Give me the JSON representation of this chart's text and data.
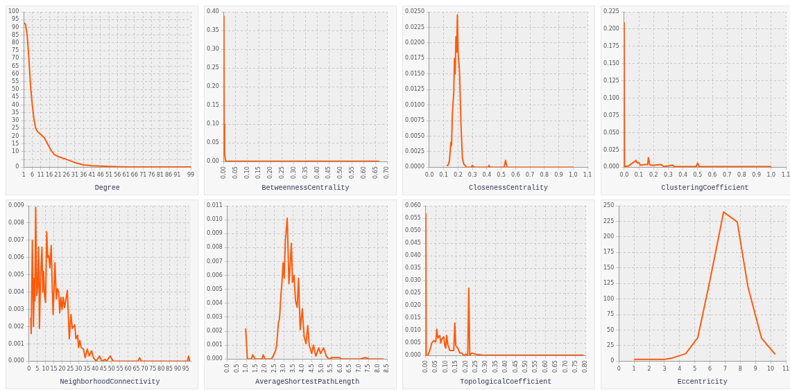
{
  "chart_data": [
    {
      "type": "line",
      "xlabel": "Degree",
      "color": "#ff5a0a",
      "grid": true,
      "marker": "none",
      "x": [
        1,
        2,
        3,
        4,
        5,
        6,
        7,
        8,
        9,
        11,
        13,
        15,
        17,
        19,
        21,
        26,
        31,
        36,
        41,
        51,
        61,
        99
      ],
      "values": [
        93,
        92,
        85,
        70,
        52,
        40,
        31,
        25,
        23,
        21,
        19,
        15,
        11,
        8,
        7,
        5,
        3,
        1.5,
        1,
        0.5,
        0.2,
        0.2
      ],
      "xlim": [
        1,
        99
      ],
      "xticks": [
        1,
        6,
        11,
        16,
        21,
        26,
        31,
        36,
        41,
        46,
        51,
        56,
        61,
        66,
        71,
        76,
        81,
        86,
        91,
        99
      ],
      "ylim": [
        0,
        100
      ],
      "yticks": [
        0,
        {
          "value": 5,
          "label": null
        },
        10,
        15,
        20,
        25,
        30,
        35,
        40,
        45,
        50,
        55,
        60,
        65,
        70,
        75,
        80,
        85,
        90,
        95,
        100
      ]
    },
    {
      "type": "line",
      "xlabel": "BetweennessCentrality",
      "color": "#ff5a0a",
      "grid": true,
      "marker": "none",
      "x": [
        0,
        0.001,
        0.003,
        0.007,
        0.01,
        0.665
      ],
      "values": [
        0.39,
        0.1,
        0.02,
        0.003,
        0.001,
        0.001
      ],
      "xlim": [
        0,
        0.7
      ],
      "xticks": [
        {
          "value": 0,
          "label": "0.00"
        },
        0.05,
        {
          "value": 0.1,
          "label": "0.10"
        },
        0.15,
        {
          "value": 0.2,
          "label": "0.20"
        },
        0.25,
        {
          "value": 0.3,
          "label": "0.30"
        },
        0.35,
        {
          "value": 0.4,
          "label": "0.40"
        },
        0.45,
        {
          "value": 0.5,
          "label": "0.50"
        },
        0.55,
        {
          "value": 0.6,
          "label": "0.60"
        },
        0.65,
        {
          "value": 0.7,
          "label": "0.70"
        }
      ],
      "ylim": [
        0,
        0.4
      ],
      "yticks": [
        {
          "value": 0,
          "label": "0.00"
        },
        0.05,
        {
          "value": 0.1,
          "label": "0.10"
        },
        0.15,
        {
          "value": 0.2,
          "label": "0.20"
        },
        0.25,
        {
          "value": 0.3,
          "label": "0.30"
        },
        0.35,
        {
          "value": 0.4,
          "label": "0.40"
        }
      ]
    },
    {
      "type": "line",
      "xlabel": "ClosenessCentrality",
      "color": "#ff5a0a",
      "grid": true,
      "marker": "none",
      "x": [
        0.12,
        0.13,
        0.14,
        0.15,
        0.155,
        0.16,
        0.17,
        0.175,
        0.18,
        0.185,
        0.19,
        0.195,
        0.2,
        0.21,
        0.22,
        0.23,
        0.24,
        0.26,
        0.29,
        0.3,
        0.31,
        0.41,
        0.415,
        0.42,
        0.52,
        0.53,
        0.54,
        1.0
      ],
      "values": [
        0.0003,
        0.0003,
        0.001,
        0.004,
        0.0035,
        0.0085,
        0.012,
        0.0175,
        0.015,
        0.021,
        0.0185,
        0.0245,
        0.0185,
        0.0155,
        0.007,
        0.0015,
        0.0005,
        0,
        0,
        0.0003,
        0,
        0,
        0.0003,
        0,
        0,
        0.0011,
        0,
        0
      ],
      "xlim": [
        0,
        1.1
      ],
      "xticks": [
        {
          "value": 0,
          "label": "0.0"
        },
        0.1,
        0.2,
        0.3,
        0.4,
        0.5,
        0.6,
        0.7,
        0.8,
        0.9,
        {
          "value": 1,
          "label": "1.0"
        },
        1.1
      ],
      "ylim": [
        0,
        0.025
      ],
      "yticks": [
        {
          "value": 0,
          "label": "0.0000"
        },
        {
          "value": 0.0025,
          "label": "0.0025"
        },
        {
          "value": 0.005,
          "label": "0.0050"
        },
        {
          "value": 0.0075,
          "label": "0.0075"
        },
        {
          "value": 0.01,
          "label": "0.0100"
        },
        {
          "value": 0.0125,
          "label": "0.0125"
        },
        {
          "value": 0.015,
          "label": "0.0150"
        },
        {
          "value": 0.0175,
          "label": "0.0175"
        },
        {
          "value": 0.02,
          "label": "0.0200"
        },
        {
          "value": 0.0225,
          "label": "0.0225"
        },
        {
          "value": 0.025,
          "label": "0.0250"
        }
      ]
    },
    {
      "type": "line",
      "xlabel": "ClusteringCoefficient",
      "color": "#ff5a0a",
      "grid": true,
      "marker": "none",
      "x": [
        0,
        0.003,
        0.03,
        0.05,
        0.07,
        0.08,
        0.09,
        0.1,
        0.11,
        0.14,
        0.16,
        0.165,
        0.175,
        0.2,
        0.25,
        0.27,
        0.33,
        0.34,
        0.49,
        0.5,
        0.51,
        1.0
      ],
      "values": [
        0.21,
        0.001,
        0.002,
        0.005,
        0.008,
        0.01,
        0.006,
        0.007,
        0.003,
        0.004,
        0.004,
        0.014,
        0.003,
        0.003,
        0.004,
        0.001,
        0.003,
        0.001,
        0.001,
        0.006,
        0.001,
        0.001
      ],
      "xlim": [
        0,
        1.1
      ],
      "xticks": [
        {
          "value": 0,
          "label": "0.0"
        },
        0.1,
        0.2,
        0.3,
        0.4,
        0.5,
        0.6,
        0.7,
        0.8,
        0.9,
        {
          "value": 1,
          "label": "1.0"
        },
        1.1
      ],
      "ylim": [
        0,
        0.225
      ],
      "yticks": [
        {
          "value": 0,
          "label": "0.000"
        },
        0.025,
        {
          "value": 0.05,
          "label": "0.050"
        },
        0.075,
        {
          "value": 0.1,
          "label": "0.100"
        },
        0.125,
        {
          "value": 0.15,
          "label": "0.150"
        },
        0.175,
        {
          "value": 0.2,
          "label": "0.200"
        },
        0.225
      ]
    },
    {
      "type": "line",
      "xlabel": "NeighborhoodConnectivity",
      "color": "#ff5a0a",
      "grid": true,
      "marker": "none",
      "x": [
        1,
        1.3,
        2,
        2.7,
        3.2,
        3.5,
        4,
        4.6,
        5.2,
        5.8,
        6.3,
        7,
        7.8,
        8.3,
        8.8,
        9.4,
        10,
        10.7,
        11.3,
        12,
        12.6,
        13.4,
        14,
        14.6,
        15.7,
        16.5,
        17.2,
        18,
        18.6,
        19.3,
        20,
        20.7,
        21.5,
        23.2,
        24.4,
        25.4,
        26.2,
        27.7,
        28.4,
        29.4,
        30,
        30.8,
        31.5,
        33,
        34,
        35.3,
        36.5,
        37.9,
        39,
        40.7,
        42.7,
        44,
        46,
        47,
        49.2,
        51,
        66,
        67,
        68,
        96,
        96.7,
        97.3
      ],
      "values": [
        0.0025,
        0.0016,
        0.007,
        0.002,
        0.0048,
        0.0035,
        0.0089,
        0.0038,
        0.0043,
        0.0066,
        0.0019,
        0.005,
        0.0066,
        0.004,
        0.0052,
        0.0038,
        0.0034,
        0.0075,
        0.006,
        0.0061,
        0.0054,
        0.0067,
        0.0045,
        0.0027,
        0.0057,
        0.0036,
        0.0042,
        0.004,
        0.0028,
        0.0037,
        0.003,
        0.0037,
        0.0031,
        0.0041,
        0.0013,
        0.0027,
        0.0019,
        0.0021,
        0.0013,
        0.0015,
        0.0008,
        0.0012,
        0.0008,
        0.0007,
        0.0002,
        0.0007,
        0.0003,
        0.0006,
        0.0002,
        0,
        0.0003,
        0,
        0.0001,
        0,
        0.0003,
        0,
        0,
        0.0002,
        0,
        0,
        0.0003,
        0
      ],
      "xlim": [
        0,
        98
      ],
      "xticks": [
        0,
        5,
        10,
        15,
        20,
        25,
        30,
        35,
        40,
        45,
        50,
        55,
        60,
        65,
        70,
        75,
        80,
        85,
        90,
        95
      ],
      "ylim": [
        0,
        0.009
      ],
      "yticks": [
        {
          "value": 0,
          "label": "0.000"
        },
        0.001,
        0.002,
        0.003,
        0.004,
        0.005,
        0.006,
        0.007,
        0.008,
        0.009
      ]
    },
    {
      "type": "line",
      "xlabel": "AverageShortestPathLength",
      "color": "#ff5a0a",
      "grid": true,
      "marker": "none",
      "x": [
        0.97,
        1.06,
        1.28,
        1.34,
        1.47,
        1.84,
        1.9,
        1.99,
        2.34,
        2.46,
        2.56,
        2.62,
        2.71,
        2.77,
        2.84,
        2.9,
        2.96,
        3.02,
        3.08,
        3.18,
        3.27,
        3.33,
        3.4,
        3.46,
        3.54,
        3.62,
        3.71,
        3.78,
        3.87,
        3.98,
        4.08,
        4.18,
        4.27,
        4.35,
        4.48,
        4.58,
        4.7,
        4.85,
        4.95,
        5.11,
        5.26,
        5.39,
        5.57,
        5.95,
        6.07,
        7.06,
        7.31,
        7.56,
        8.3
      ],
      "values": [
        0.0022,
        0,
        0,
        0.0003,
        0,
        0,
        0.0003,
        0,
        0,
        0.0003,
        0.0006,
        0.001,
        0.0026,
        0.0029,
        0.0045,
        0.0055,
        0.0069,
        0.0058,
        0.0085,
        0.0101,
        0.0054,
        0.0066,
        0.0083,
        0.0055,
        0.006,
        0.0042,
        0.0037,
        0.0058,
        0.0021,
        0.0036,
        0.0016,
        0.0011,
        0.0024,
        0.001,
        0.0004,
        0.001,
        0.0002,
        0.0008,
        0.0004,
        0.0008,
        0.0002,
        0,
        0.0001,
        0.0001,
        0,
        0,
        0.0001,
        0,
        0
      ],
      "xlim": [
        0,
        8.5
      ],
      "xticks": [
        {
          "value": 0,
          "label": "0.0"
        },
        0.5,
        {
          "value": 1,
          "label": "1.0"
        },
        1.5,
        {
          "value": 2,
          "label": "2.0"
        },
        2.5,
        {
          "value": 3,
          "label": "3.0"
        },
        3.5,
        {
          "value": 4,
          "label": "4.0"
        },
        4.5,
        {
          "value": 5,
          "label": "5.0"
        },
        5.5,
        {
          "value": 6,
          "label": "6.0"
        },
        6.5,
        {
          "value": 7,
          "label": "7.0"
        },
        7.5,
        {
          "value": 8,
          "label": "8.0"
        },
        8.5
      ],
      "ylim": [
        0,
        0.011
      ],
      "yticks": [
        {
          "value": 0,
          "label": "0.000"
        },
        0.001,
        0.002,
        0.003,
        0.004,
        0.005,
        0.006,
        0.007,
        0.008,
        0.009,
        {
          "value": 0.01,
          "label": "0.010"
        },
        0.011
      ]
    },
    {
      "type": "line",
      "xlabel": "TopologicalCoefficient",
      "color": "#ff5a0a",
      "grid": true,
      "marker": "none",
      "x": [
        0,
        0.002,
        0.01,
        0.02,
        0.03,
        0.04,
        0.05,
        0.055,
        0.06,
        0.07,
        0.075,
        0.08,
        0.09,
        0.095,
        0.1,
        0.105,
        0.11,
        0.12,
        0.13,
        0.14,
        0.145,
        0.15,
        0.16,
        0.17,
        0.18,
        0.19,
        0.2,
        0.21,
        0.215,
        0.22,
        0.23,
        0.25,
        0.28,
        0.35,
        0.79
      ],
      "values": [
        0.057,
        0,
        0,
        0.002,
        0.005,
        0.006,
        0.0055,
        0.0105,
        0.007,
        0.008,
        0.005,
        0.0065,
        0.0075,
        0.004,
        0.003,
        0.008,
        0.0045,
        0.002,
        0.002,
        0.002,
        0.013,
        0.004,
        0.003,
        0.001,
        0.001,
        0,
        0.0005,
        0,
        0.027,
        0,
        0.001,
        0.0005,
        0.0002,
        0.0001,
        0.0001
      ],
      "xlim": [
        0,
        0.8
      ],
      "xticks": [
        {
          "value": 0,
          "label": "0.00"
        },
        0.05,
        {
          "value": 0.1,
          "label": "0.10"
        },
        0.15,
        {
          "value": 0.2,
          "label": "0.20"
        },
        0.25,
        {
          "value": 0.3,
          "label": "0.30"
        },
        0.35,
        {
          "value": 0.4,
          "label": "0.40"
        },
        0.45,
        {
          "value": 0.5,
          "label": "0.50"
        },
        0.55,
        {
          "value": 0.6,
          "label": "0.60"
        },
        0.65,
        {
          "value": 0.7,
          "label": "0.70"
        },
        0.75,
        {
          "value": 0.8,
          "label": "0.80"
        }
      ],
      "ylim": [
        0,
        0.06
      ],
      "yticks": [
        {
          "value": 0,
          "label": "0.000"
        },
        0.005,
        {
          "value": 0.01,
          "label": "0.010"
        },
        0.015,
        {
          "value": 0.02,
          "label": "0.020"
        },
        0.025,
        {
          "value": 0.03,
          "label": "0.030"
        },
        0.035,
        {
          "value": 0.04,
          "label": "0.040"
        },
        0.045,
        {
          "value": 0.05,
          "label": "0.050"
        },
        0.055,
        {
          "value": 0.06,
          "label": "0.060"
        }
      ]
    },
    {
      "type": "line",
      "xlabel": "Eccentricity",
      "color": "#ff5a0a",
      "grid": true,
      "marker": "none",
      "x": [
        1,
        2,
        3,
        3.5,
        4.4,
        5.2,
        6,
        6.9,
        7.8,
        8.5,
        9.4,
        10.3
      ],
      "values": [
        3,
        3,
        3,
        5,
        12,
        38,
        130,
        240,
        224,
        120,
        37,
        11
      ],
      "xlim": [
        0,
        11
      ],
      "xticks": [
        0,
        1,
        2,
        3,
        4,
        5,
        6,
        7,
        8,
        9,
        10,
        11
      ],
      "ylim": [
        0,
        250
      ],
      "yticks": [
        0,
        25,
        50,
        75,
        100,
        125,
        150,
        175,
        200,
        225,
        250
      ]
    }
  ]
}
